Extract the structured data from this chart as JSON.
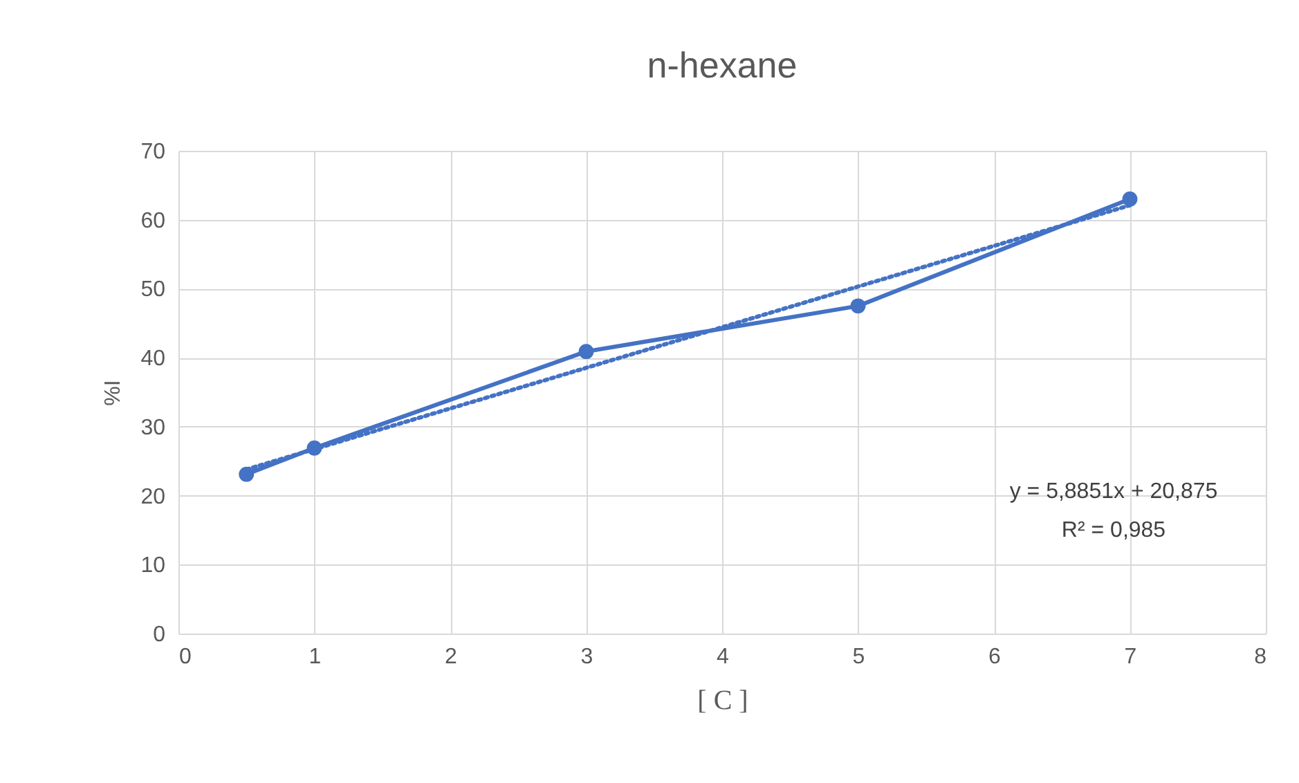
{
  "chart_data": {
    "type": "line",
    "title": "n-hexane",
    "xlabel": "[ C ]",
    "ylabel": "%I",
    "x": [
      0.5,
      1,
      3,
      5,
      7
    ],
    "series": [
      {
        "color": "#4472c4",
        "values": [
          23.1,
          26.9,
          40.9,
          47.5,
          63.0
        ],
        "marker": "circle",
        "line_style": "solid"
      },
      {
        "type": "line",
        "color": "#4472c4",
        "x": [
          0.5,
          7
        ],
        "values": [
          23.8,
          62.1
        ],
        "marker": "none",
        "line_style": "dotted"
      }
    ],
    "xlim": [
      0,
      8
    ],
    "xticks": [
      0,
      1,
      2,
      3,
      4,
      5,
      6,
      7,
      8
    ],
    "ylim": [
      0,
      70
    ],
    "yticks": [
      0,
      10,
      20,
      30,
      40,
      50,
      60,
      70
    ],
    "grid": true,
    "annotations": [
      "y = 5,8851x + 20,875",
      "R² = 0,985"
    ]
  }
}
